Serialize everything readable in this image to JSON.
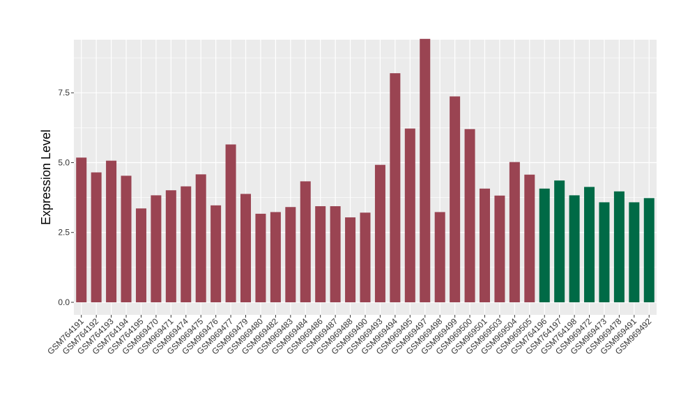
{
  "chart_data": {
    "type": "bar",
    "ylabel": "Expression Level",
    "xlabel": "",
    "title": "",
    "ylim": [
      0,
      9.4
    ],
    "yticks": [
      0.0,
      2.5,
      5.0,
      7.5
    ],
    "ytick_labels": [
      "0.0",
      "2.5",
      "5.0",
      "7.5"
    ],
    "grid": true,
    "colors": {
      "group1": "#9a4452",
      "group2": "#006a46",
      "panel": "#ebebeb",
      "grid": "#ffffff"
    },
    "categories": [
      "GSM764191",
      "GSM764192",
      "GSM764193",
      "GSM764194",
      "GSM764195",
      "GSM969470",
      "GSM969471",
      "GSM969474",
      "GSM969475",
      "GSM969476",
      "GSM969477",
      "GSM969479",
      "GSM969480",
      "GSM969482",
      "GSM969483",
      "GSM969484",
      "GSM969486",
      "GSM969487",
      "GSM969488",
      "GSM969490",
      "GSM969493",
      "GSM969494",
      "GSM969495",
      "GSM969497",
      "GSM969498",
      "GSM969499",
      "GSM969500",
      "GSM969501",
      "GSM969503",
      "GSM969504",
      "GSM969505",
      "GSM764196",
      "GSM764197",
      "GSM764198",
      "GSM969472",
      "GSM969473",
      "GSM969478",
      "GSM969491",
      "GSM969492"
    ],
    "values": [
      5.18,
      4.65,
      5.07,
      4.53,
      3.36,
      3.83,
      4.01,
      4.15,
      4.58,
      3.47,
      5.65,
      3.88,
      3.17,
      3.23,
      3.41,
      4.33,
      3.44,
      3.44,
      3.04,
      3.21,
      4.92,
      8.2,
      6.22,
      9.43,
      3.23,
      7.37,
      6.2,
      4.07,
      3.82,
      5.02,
      4.57,
      4.07,
      4.36,
      3.83,
      4.13,
      3.58,
      3.97,
      3.58,
      3.73
    ],
    "groups": [
      1,
      1,
      1,
      1,
      1,
      1,
      1,
      1,
      1,
      1,
      1,
      1,
      1,
      1,
      1,
      1,
      1,
      1,
      1,
      1,
      1,
      1,
      1,
      1,
      1,
      1,
      1,
      1,
      1,
      1,
      1,
      2,
      2,
      2,
      2,
      2,
      2,
      2,
      2
    ]
  }
}
